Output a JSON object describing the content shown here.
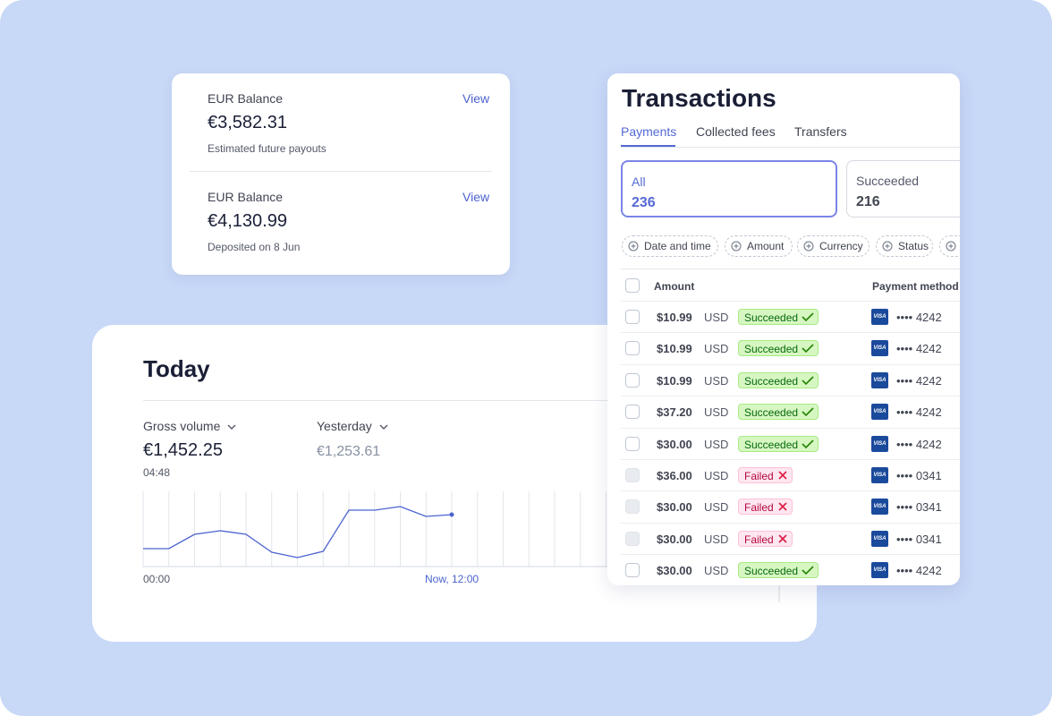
{
  "balances": [
    {
      "label": "EUR Balance",
      "action": "View",
      "amount": "€3,582.31",
      "note": "Estimated future payouts"
    },
    {
      "label": "EUR Balance",
      "action": "View",
      "amount": "€4,130.99",
      "note": "Deposited on 8 Jun"
    }
  ],
  "today": {
    "title": "Today",
    "metrics": [
      {
        "label": "Gross volume",
        "value": "€1,452.25",
        "time": "04:48"
      },
      {
        "label": "Yesterday",
        "value": "€1,253.61"
      }
    ],
    "chart": {
      "values": [
        20,
        20,
        36,
        40,
        36,
        16,
        10,
        17,
        63,
        63,
        67,
        56,
        58
      ],
      "x_labels": [
        "00:00",
        "Now, 12:00"
      ]
    }
  },
  "transactions": {
    "title": "Transactions",
    "tabs": [
      "Payments",
      "Collected fees",
      "Transfers"
    ],
    "filters": [
      {
        "label": "All",
        "count": "236"
      },
      {
        "label": "Succeeded",
        "count": "216"
      }
    ],
    "chips": [
      "Date and time",
      "Amount",
      "Currency",
      "Status"
    ],
    "columns": [
      "Amount",
      "Payment method"
    ],
    "rows": [
      {
        "amount": "$10.99",
        "currency": "USD",
        "status": "Succeeded",
        "brand": "VISA",
        "card": "•••• 4242"
      },
      {
        "amount": "$10.99",
        "currency": "USD",
        "status": "Succeeded",
        "brand": "VISA",
        "card": "•••• 4242"
      },
      {
        "amount": "$10.99",
        "currency": "USD",
        "status": "Succeeded",
        "brand": "VISA",
        "card": "•••• 4242"
      },
      {
        "amount": "$37.20",
        "currency": "USD",
        "status": "Succeeded",
        "brand": "VISA",
        "card": "•••• 4242"
      },
      {
        "amount": "$30.00",
        "currency": "USD",
        "status": "Succeeded",
        "brand": "VISA",
        "card": "•••• 4242"
      },
      {
        "amount": "$36.00",
        "currency": "USD",
        "status": "Failed",
        "brand": "VISA",
        "card": "•••• 0341"
      },
      {
        "amount": "$30.00",
        "currency": "USD",
        "status": "Failed",
        "brand": "VISA",
        "card": "•••• 0341"
      },
      {
        "amount": "$30.00",
        "currency": "USD",
        "status": "Failed",
        "brand": "VISA",
        "card": "•••• 0341"
      },
      {
        "amount": "$30.00",
        "currency": "USD",
        "status": "Succeeded",
        "brand": "VISA",
        "card": "•••• 4242"
      }
    ]
  }
}
